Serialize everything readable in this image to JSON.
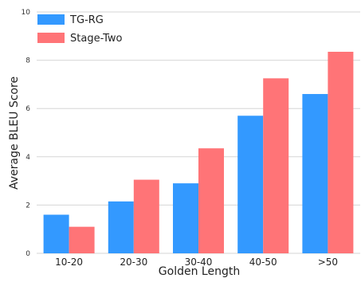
{
  "chart_data": {
    "type": "bar",
    "categories": [
      "10-20",
      "20-30",
      "30-40",
      "40-50",
      ">50"
    ],
    "series": [
      {
        "name": "TG-RG",
        "color": "#3399ff",
        "values": [
          1.6,
          2.15,
          2.9,
          5.7,
          6.6
        ]
      },
      {
        "name": "Stage-Two",
        "color": "#ff7477",
        "values": [
          1.1,
          3.05,
          4.35,
          7.25,
          8.35
        ]
      }
    ],
    "title": "",
    "xlabel": "Golden Length",
    "ylabel": "Average BLEU Score",
    "ylim": [
      0,
      10
    ],
    "yticks": [
      "0",
      "2",
      "4",
      "6",
      "8",
      "10"
    ],
    "grid": true,
    "legend_position": "top-left"
  }
}
